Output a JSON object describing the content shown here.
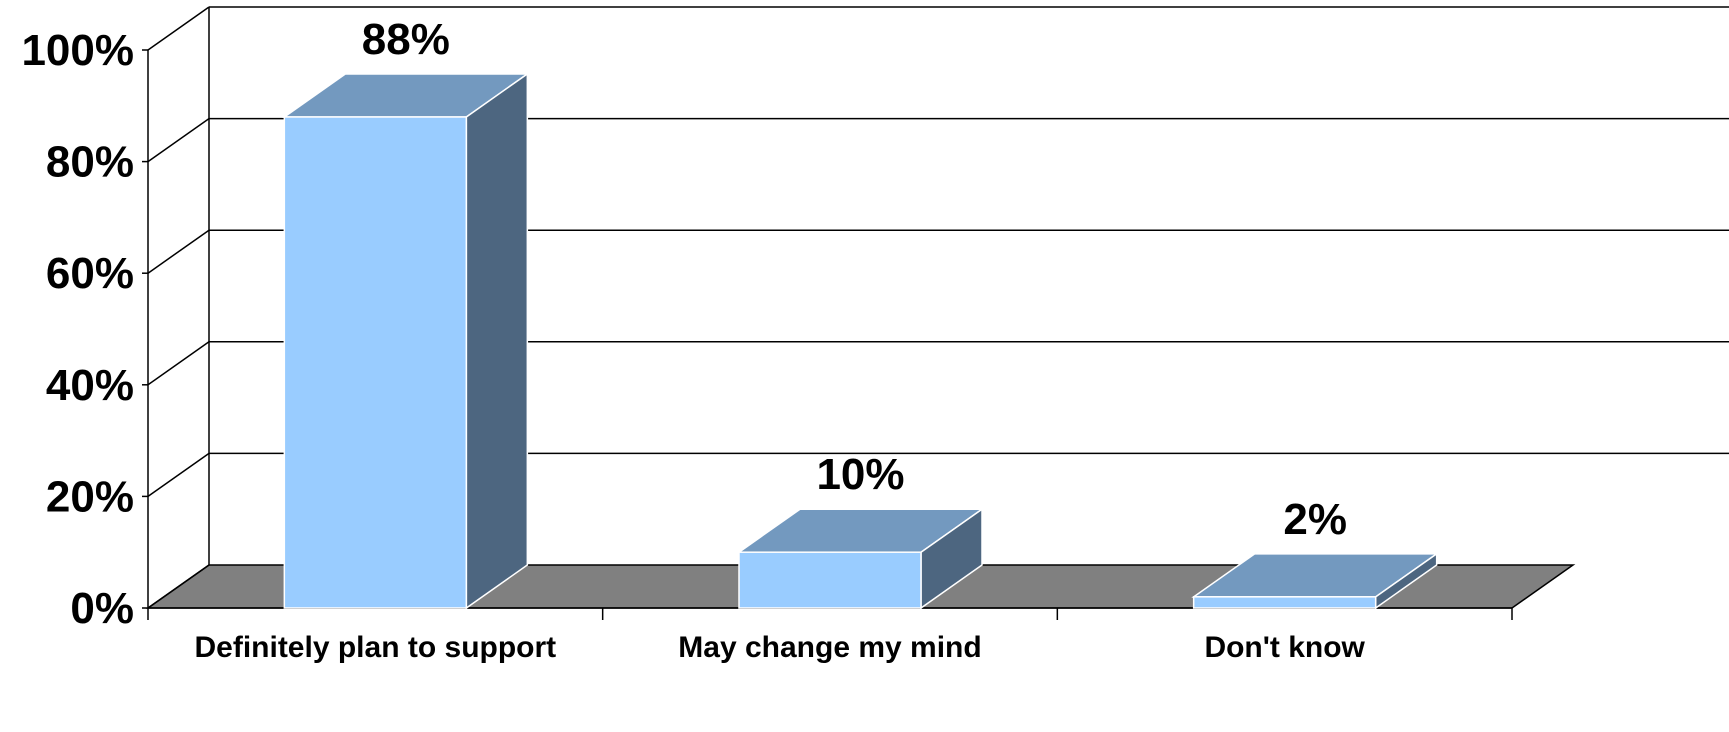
{
  "chart_data": {
    "type": "bar",
    "style": "3d-column",
    "categories": [
      "Definitely plan to support",
      "May change my mind",
      "Don't know"
    ],
    "values": [
      88,
      10,
      2
    ],
    "data_labels": [
      "88%",
      "10%",
      "2%"
    ],
    "ylim": [
      0,
      100
    ],
    "yticks": [
      0,
      20,
      40,
      60,
      80,
      100
    ],
    "ytick_labels": [
      "0%",
      "20%",
      "40%",
      "60%",
      "80%",
      "100%"
    ],
    "grid": true,
    "legend": "none",
    "colors": {
      "bar_front": "#99ccff",
      "bar_top": "#7399bf",
      "bar_side": "#4d6680",
      "floor": "#808080",
      "gridline": "#000000",
      "background": "#ffffff"
    }
  }
}
